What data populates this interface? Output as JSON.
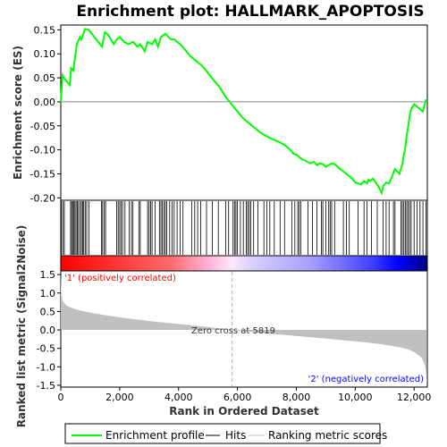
{
  "chart_data": {
    "type": "line",
    "title": "Enrichment plot: HALLMARK_APOPTOSIS",
    "colors": {
      "profile": "#00ff00",
      "hits": "#000000",
      "metric_fill": "#c0c0c0",
      "zero_line": "#b0b0b0",
      "positive_label": "#ff0000",
      "negative_label": "#0000ff",
      "heat_red": "#ff0000",
      "heat_blue": "#0000ff"
    },
    "es_panel": {
      "ylabel": "Enrichment score (ES)",
      "ylim": [
        -0.205,
        0.16
      ],
      "yticks": [
        0.15,
        0.1,
        0.05,
        0.0,
        -0.05,
        -0.1,
        -0.15,
        -0.2
      ],
      "ytick_labels": [
        "0.15",
        "0.10",
        "0.05",
        "0.00",
        "-0.05",
        "-0.10",
        "-0.15",
        "-0.20"
      ],
      "series_name": "Enrichment profile",
      "x": [
        0,
        60,
        100,
        300,
        350,
        420,
        500,
        540,
        650,
        700,
        760,
        820,
        950,
        1200,
        1400,
        1500,
        1600,
        1800,
        1900,
        2000,
        2150,
        2300,
        2450,
        2600,
        2700,
        2850,
        2950,
        3100,
        3200,
        3300,
        3400,
        3550,
        3650,
        3750,
        3850,
        3950,
        4050,
        4200,
        4400,
        4600,
        4800,
        5000,
        5200,
        5400,
        5600,
        5800,
        6000,
        6200,
        6400,
        6600,
        6800,
        7000,
        7100,
        7200,
        7400,
        7600,
        7800,
        7900,
        8000,
        8100,
        8200,
        8300,
        8450,
        8600,
        8700,
        8800,
        8900,
        9000,
        9100,
        9200,
        9300,
        9450,
        9600,
        9700,
        9800,
        9900,
        10000,
        10100,
        10200,
        10300,
        10400,
        10450,
        10500,
        10600,
        10700,
        10800,
        10900,
        10950,
        11050,
        11150,
        11250,
        11350,
        11500,
        11600,
        11650,
        11700,
        11750,
        11800,
        11850,
        11900,
        11950,
        12000,
        12100,
        12200,
        12300,
        12400
      ],
      "y": [
        0.0,
        0.055,
        0.05,
        0.035,
        0.07,
        0.065,
        0.1,
        0.12,
        0.135,
        0.13,
        0.14,
        0.152,
        0.15,
        0.13,
        0.115,
        0.145,
        0.14,
        0.12,
        0.13,
        0.135,
        0.125,
        0.12,
        0.125,
        0.115,
        0.12,
        0.105,
        0.125,
        0.12,
        0.13,
        0.115,
        0.135,
        0.142,
        0.135,
        0.13,
        0.13,
        0.125,
        0.12,
        0.11,
        0.095,
        0.085,
        0.075,
        0.06,
        0.045,
        0.03,
        0.01,
        -0.005,
        -0.02,
        -0.035,
        -0.045,
        -0.055,
        -0.065,
        -0.072,
        -0.075,
        -0.078,
        -0.083,
        -0.09,
        -0.1,
        -0.108,
        -0.11,
        -0.115,
        -0.12,
        -0.122,
        -0.128,
        -0.125,
        -0.132,
        -0.128,
        -0.13,
        -0.135,
        -0.132,
        -0.128,
        -0.13,
        -0.138,
        -0.145,
        -0.15,
        -0.155,
        -0.16,
        -0.168,
        -0.17,
        -0.172,
        -0.165,
        -0.17,
        -0.162,
        -0.165,
        -0.16,
        -0.168,
        -0.178,
        -0.19,
        -0.175,
        -0.168,
        -0.17,
        -0.155,
        -0.14,
        -0.15,
        -0.13,
        -0.11,
        -0.095,
        -0.07,
        -0.05,
        -0.03,
        -0.015,
        -0.01,
        -0.005,
        -0.01,
        -0.015,
        -0.02,
        0.005
      ]
    },
    "hits_panel": {
      "series_name": "Hits",
      "positions": [
        20,
        80,
        120,
        330,
        370,
        400,
        440,
        480,
        520,
        560,
        600,
        660,
        700,
        740,
        780,
        830,
        880,
        960,
        1380,
        1420,
        1480,
        1520,
        1900,
        1950,
        2000,
        2050,
        2100,
        2180,
        2320,
        2400,
        2450,
        2650,
        2700,
        2950,
        3000,
        3050,
        3100,
        3200,
        3350,
        3400,
        3450,
        3500,
        3550,
        3600,
        3700,
        3780,
        3850,
        3950,
        4050,
        4150,
        4450,
        4550,
        4650,
        4750,
        4950,
        5150,
        5350,
        5600,
        5700,
        5850,
        5900,
        5950,
        6000,
        6100,
        6200,
        6300,
        6350,
        6400,
        6450,
        6550,
        6700,
        6900,
        7000,
        7100,
        7250,
        7450,
        7600,
        7850,
        7950,
        8050,
        8100,
        8150,
        8400,
        8550,
        8700,
        8850,
        8900,
        9000,
        9100,
        9150,
        9200,
        9300,
        9600,
        9700,
        9800,
        10100,
        10300,
        10400,
        10550,
        10750,
        10950,
        11050,
        11150,
        11300,
        11350,
        11550,
        11600,
        11650,
        11700,
        11750,
        11800,
        11850,
        11900,
        12000,
        12100,
        12200,
        12300,
        12400
      ]
    },
    "heatmap": {
      "type": "heatmap",
      "zero_cross_fraction": 0.467
    },
    "metric_panel": {
      "ylabel": "Ranked list metric (Signal2Noise)",
      "xlabel": "Rank in Ordered Dataset",
      "series_name": "Ranking metric scores",
      "ylim": [
        -1.55,
        1.6
      ],
      "yticks": [
        1.5,
        1.0,
        0.5,
        0.0,
        -0.5,
        -1.0,
        -1.5
      ],
      "ytick_labels": [
        "1.5",
        "1.0",
        "0.5",
        "0.0",
        "-0.5",
        "-1.0",
        "-1.5"
      ],
      "xlim": [
        0,
        12450
      ],
      "xticks": [
        0,
        2000,
        4000,
        6000,
        8000,
        10000,
        12000
      ],
      "xtick_labels": [
        "0",
        "2,000",
        "4,000",
        "6,000",
        "8,000",
        "10,000",
        "12,000"
      ],
      "curve_x": [
        0,
        20,
        60,
        120,
        200,
        300,
        500,
        800,
        1200,
        2000,
        3000,
        4000,
        5000,
        5819,
        6500,
        7500,
        8500,
        9500,
        10500,
        11000,
        11500,
        11800,
        12000,
        12150,
        12250,
        12320,
        12370,
        12400,
        12420,
        12440
      ],
      "curve_y": [
        1.55,
        0.95,
        0.8,
        0.72,
        0.66,
        0.62,
        0.56,
        0.5,
        0.44,
        0.34,
        0.24,
        0.16,
        0.08,
        0.0,
        -0.06,
        -0.13,
        -0.2,
        -0.27,
        -0.35,
        -0.4,
        -0.47,
        -0.53,
        -0.6,
        -0.68,
        -0.75,
        -0.85,
        -0.97,
        -1.1,
        -1.3,
        -1.42
      ],
      "zero_cross_rank": 5819,
      "zero_cross_label": "Zero cross at 5819",
      "positive_label": "'1' (positively correlated)",
      "negative_label": "'2' (negatively correlated)"
    },
    "legend": {
      "placement": "bottom",
      "entries": [
        "Enrichment profile",
        "Hits",
        "Ranking metric scores"
      ]
    }
  }
}
